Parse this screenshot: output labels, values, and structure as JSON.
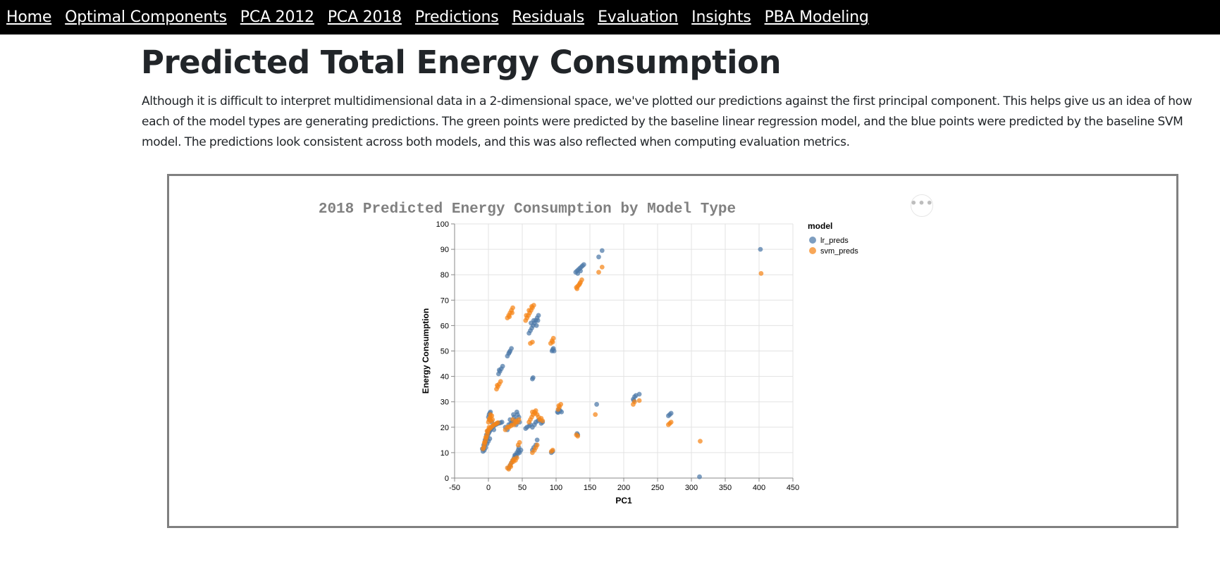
{
  "nav": {
    "items": [
      {
        "label": "Home",
        "name": "nav-home"
      },
      {
        "label": "Optimal Components",
        "name": "nav-optimal-components"
      },
      {
        "label": "PCA 2012",
        "name": "nav-pca-2012"
      },
      {
        "label": "PCA 2018",
        "name": "nav-pca-2018"
      },
      {
        "label": "Predictions",
        "name": "nav-predictions"
      },
      {
        "label": "Residuals",
        "name": "nav-residuals"
      },
      {
        "label": "Evaluation",
        "name": "nav-evaluation"
      },
      {
        "label": "Insights",
        "name": "nav-insights"
      },
      {
        "label": "PBA Modeling",
        "name": "nav-pba-modeling"
      }
    ]
  },
  "page": {
    "title": "Predicted Total Energy Consumption",
    "intro": "Although it is difficult to interpret multidimensional data in a 2-dimensional space, we've plotted our predictions against the first principal component. This helps give us an idea of how each of the model types are generating predictions. The green points were predicted by the baseline linear regression model, and the blue points were predicted by the baseline SVM model. The predictions look consistent across both models, and this was also reflected when computing evaluation metrics."
  },
  "chart_actions_icon": "ellipsis-icon",
  "chart_data": {
    "type": "scatter",
    "title": "2018 Predicted Energy Consumption by Model Type",
    "xlabel": "PC1",
    "ylabel": "Energy Consumption",
    "xlim": [
      -50,
      450
    ],
    "ylim": [
      0,
      100
    ],
    "xticks": [
      -50,
      0,
      50,
      100,
      150,
      200,
      250,
      300,
      350,
      400,
      450
    ],
    "yticks": [
      0,
      10,
      20,
      30,
      40,
      50,
      60,
      70,
      80,
      90,
      100
    ],
    "grid": true,
    "legend": {
      "title": "model",
      "placement": "top-right"
    },
    "series": [
      {
        "name": "lr_preds",
        "color": "#4c78a8",
        "points": [
          [
            -8,
            10.5
          ],
          [
            -7,
            11.5
          ],
          [
            -6,
            12.5
          ],
          [
            -5,
            13.5
          ],
          [
            -4,
            14.5
          ],
          [
            -3,
            15.5
          ],
          [
            -2,
            16
          ],
          [
            -1,
            16.8
          ],
          [
            0,
            17.5
          ],
          [
            1,
            18
          ],
          [
            2,
            18.5
          ],
          [
            3,
            19
          ],
          [
            4,
            19.5
          ],
          [
            6,
            20
          ],
          [
            8,
            20.5
          ],
          [
            10,
            21
          ],
          [
            12,
            21.2
          ],
          [
            14,
            21.5
          ],
          [
            16,
            21.6
          ],
          [
            18,
            21.8
          ],
          [
            20,
            22
          ],
          [
            -6,
            11
          ],
          [
            -4,
            12
          ],
          [
            -2,
            13.5
          ],
          [
            0,
            14.5
          ],
          [
            2,
            15.5
          ],
          [
            -9,
            11.5
          ],
          [
            -7,
            13
          ],
          [
            -5,
            15
          ],
          [
            -3,
            17
          ],
          [
            -1,
            18.5
          ],
          [
            0,
            24
          ],
          [
            1,
            25
          ],
          [
            2,
            25.5
          ],
          [
            3,
            26
          ],
          [
            2,
            23
          ],
          [
            5,
            22
          ],
          [
            8,
            19
          ],
          [
            15,
            41
          ],
          [
            17,
            42
          ],
          [
            19,
            43
          ],
          [
            21,
            44
          ],
          [
            16,
            42.5
          ],
          [
            28,
            48
          ],
          [
            30,
            49
          ],
          [
            32,
            50
          ],
          [
            34,
            51
          ],
          [
            31,
            49.5
          ],
          [
            60,
            57
          ],
          [
            62,
            58
          ],
          [
            64,
            59
          ],
          [
            66,
            60
          ],
          [
            68,
            61
          ],
          [
            70,
            62
          ],
          [
            72,
            63
          ],
          [
            74,
            64
          ],
          [
            63,
            61
          ],
          [
            67,
            62
          ],
          [
            71,
            60
          ],
          [
            73,
            62
          ],
          [
            65,
            39
          ],
          [
            66,
            39.5
          ],
          [
            94,
            50
          ],
          [
            95,
            50.5
          ],
          [
            96,
            51
          ],
          [
            97,
            50
          ],
          [
            102,
            26
          ],
          [
            104,
            27
          ],
          [
            106,
            26.5
          ],
          [
            108,
            26
          ],
          [
            103,
            25.8
          ],
          [
            129,
            81
          ],
          [
            131,
            81.5
          ],
          [
            133,
            82
          ],
          [
            135,
            82.5
          ],
          [
            137,
            83
          ],
          [
            139,
            83.5
          ],
          [
            141,
            84
          ],
          [
            132,
            80.5
          ],
          [
            136,
            81.5
          ],
          [
            163,
            87
          ],
          [
            168,
            89.5
          ],
          [
            160,
            29
          ],
          [
            214,
            31
          ],
          [
            216,
            32
          ],
          [
            218,
            32.5
          ],
          [
            223,
            33
          ],
          [
            215,
            30.5
          ],
          [
            266,
            24.5
          ],
          [
            268,
            25
          ],
          [
            270,
            25.5
          ],
          [
            312,
            0.5
          ],
          [
            402,
            90
          ],
          [
            25,
            20
          ],
          [
            30,
            21
          ],
          [
            35,
            22
          ],
          [
            40,
            23
          ],
          [
            45,
            24
          ],
          [
            28,
            19
          ],
          [
            33,
            21.5
          ],
          [
            38,
            24
          ],
          [
            43,
            25
          ],
          [
            32,
            23
          ],
          [
            37,
            25
          ],
          [
            42,
            26
          ],
          [
            36,
            22
          ],
          [
            41,
            21
          ],
          [
            46,
            22
          ],
          [
            30,
            4
          ],
          [
            32,
            5
          ],
          [
            34,
            6
          ],
          [
            36,
            7
          ],
          [
            38,
            8
          ],
          [
            40,
            9
          ],
          [
            42,
            10
          ],
          [
            44,
            11
          ],
          [
            46,
            10
          ],
          [
            39,
            9
          ],
          [
            41,
            8.5
          ],
          [
            43,
            9.5
          ],
          [
            45,
            10.5
          ],
          [
            55,
            19.5
          ],
          [
            57,
            20
          ],
          [
            60,
            20.5
          ],
          [
            62,
            21
          ],
          [
            65,
            20
          ],
          [
            68,
            21
          ],
          [
            70,
            22
          ],
          [
            73,
            22.5
          ],
          [
            75,
            23
          ],
          [
            78,
            21.5
          ],
          [
            80,
            22
          ],
          [
            65,
            11
          ],
          [
            67,
            12
          ],
          [
            70,
            13
          ],
          [
            72,
            15
          ],
          [
            45,
            12
          ],
          [
            48,
            11
          ],
          [
            93,
            10
          ],
          [
            95,
            10.5
          ],
          [
            131,
            17.5
          ],
          [
            132,
            17
          ]
        ]
      },
      {
        "name": "svm_preds",
        "color": "#f58518",
        "points": [
          [
            -7,
            12
          ],
          [
            -6,
            13
          ],
          [
            -5,
            14
          ],
          [
            -4,
            15
          ],
          [
            -3,
            16
          ],
          [
            -2,
            17
          ],
          [
            -1,
            18
          ],
          [
            0,
            19
          ],
          [
            2,
            19.5
          ],
          [
            4,
            20
          ],
          [
            6,
            20.5
          ],
          [
            8,
            21
          ],
          [
            10,
            21.2
          ],
          [
            12,
            21.5
          ],
          [
            14,
            21.8
          ],
          [
            -8,
            11.5
          ],
          [
            -6,
            14
          ],
          [
            -4,
            16
          ],
          [
            -2,
            18.5
          ],
          [
            1,
            20
          ],
          [
            0,
            22
          ],
          [
            1,
            23
          ],
          [
            2,
            23.5
          ],
          [
            3,
            24
          ],
          [
            5,
            24.5
          ],
          [
            4,
            22.5
          ],
          [
            6,
            23
          ],
          [
            3,
            25
          ],
          [
            12,
            35
          ],
          [
            14,
            36
          ],
          [
            16,
            37
          ],
          [
            18,
            38
          ],
          [
            13,
            36.5
          ],
          [
            28,
            63
          ],
          [
            30,
            64
          ],
          [
            32,
            65
          ],
          [
            34,
            66
          ],
          [
            36,
            67
          ],
          [
            31,
            63.5
          ],
          [
            35,
            65
          ],
          [
            55,
            62
          ],
          [
            57,
            63
          ],
          [
            59,
            64
          ],
          [
            61,
            65
          ],
          [
            63,
            66
          ],
          [
            65,
            67
          ],
          [
            67,
            68
          ],
          [
            56,
            64
          ],
          [
            60,
            66
          ],
          [
            64,
            67.5
          ],
          [
            62,
            53
          ],
          [
            65,
            53.5
          ],
          [
            92,
            53
          ],
          [
            94,
            54
          ],
          [
            96,
            55
          ],
          [
            95,
            53.5
          ],
          [
            103,
            27
          ],
          [
            105,
            28
          ],
          [
            107,
            29
          ],
          [
            104,
            28.5
          ],
          [
            130,
            75
          ],
          [
            132,
            75.5
          ],
          [
            134,
            76
          ],
          [
            136,
            77
          ],
          [
            138,
            78
          ],
          [
            131,
            74.5
          ],
          [
            135,
            76.5
          ],
          [
            163,
            81
          ],
          [
            168,
            83
          ],
          [
            158,
            25
          ],
          [
            214,
            29
          ],
          [
            216,
            30
          ],
          [
            223,
            30.5
          ],
          [
            266,
            21
          ],
          [
            268,
            21.5
          ],
          [
            270,
            22
          ],
          [
            313,
            14.5
          ],
          [
            403,
            80.5
          ],
          [
            25,
            19
          ],
          [
            30,
            20
          ],
          [
            35,
            21
          ],
          [
            40,
            22
          ],
          [
            45,
            23
          ],
          [
            28,
            20
          ],
          [
            33,
            20.5
          ],
          [
            38,
            21
          ],
          [
            43,
            22
          ],
          [
            36,
            23
          ],
          [
            41,
            22.5
          ],
          [
            28,
            4
          ],
          [
            30,
            3.5
          ],
          [
            32,
            5
          ],
          [
            34,
            6
          ],
          [
            36,
            7
          ],
          [
            38,
            7.5
          ],
          [
            40,
            7
          ],
          [
            42,
            8
          ],
          [
            33,
            4.5
          ],
          [
            37,
            6.5
          ],
          [
            60,
            22
          ],
          [
            62,
            23
          ],
          [
            64,
            24
          ],
          [
            66,
            25
          ],
          [
            68,
            26
          ],
          [
            70,
            26.5
          ],
          [
            72,
            25
          ],
          [
            65,
            26
          ],
          [
            69,
            25.5
          ],
          [
            74,
            24
          ],
          [
            76,
            23
          ],
          [
            80,
            22.5
          ],
          [
            78,
            23.5
          ],
          [
            65,
            10
          ],
          [
            68,
            11
          ],
          [
            70,
            12
          ],
          [
            72,
            13
          ],
          [
            44,
            13
          ],
          [
            46,
            14
          ],
          [
            93,
            10.5
          ],
          [
            95,
            11
          ],
          [
            130,
            17
          ],
          [
            132,
            16.5
          ]
        ]
      }
    ]
  }
}
